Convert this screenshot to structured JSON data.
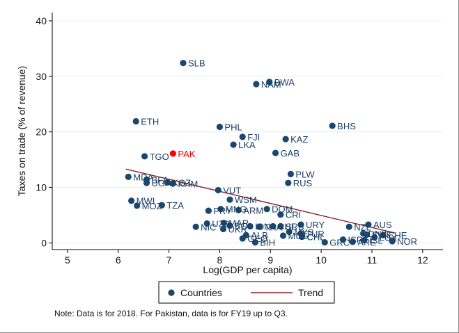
{
  "chart_data": {
    "type": "scatter",
    "xlabel": "Log(GDP per capita)",
    "ylabel": "Taxes on trade (% of revenue)",
    "xlim": [
      4.7,
      12.4
    ],
    "ylim": [
      -1.2,
      41.5
    ],
    "xticks": [
      5,
      6,
      7,
      8,
      9,
      10,
      11,
      12
    ],
    "yticks": [
      0,
      10,
      20,
      30,
      40
    ],
    "grid": "horizontal",
    "legend_position": "bottom",
    "colors": {
      "points": "#1a476f",
      "highlight": "#ff0000",
      "trend": "#8b2027",
      "grid": "#e8eef2"
    },
    "legend": {
      "points_label": "Countries",
      "trend_label": "Trend"
    },
    "trend": {
      "x": [
        6.15,
        11.45
      ],
      "y": [
        13.3,
        1.8
      ]
    },
    "series": [
      {
        "points": [
          {
            "x": 7.28,
            "y": 32.4,
            "label": "SLB"
          },
          {
            "x": 8.98,
            "y": 29.0,
            "label": "BWA"
          },
          {
            "x": 8.72,
            "y": 28.6,
            "label": "NAM"
          },
          {
            "x": 6.35,
            "y": 21.9,
            "label": "ETH"
          },
          {
            "x": 8.0,
            "y": 20.9,
            "label": "PHL"
          },
          {
            "x": 10.22,
            "y": 21.1,
            "label": "BHS"
          },
          {
            "x": 8.45,
            "y": 19.1,
            "label": "FJI"
          },
          {
            "x": 9.3,
            "y": 18.7,
            "label": "KAZ"
          },
          {
            "x": 8.27,
            "y": 17.7,
            "label": "LKA"
          },
          {
            "x": 9.1,
            "y": 16.2,
            "label": "GAB"
          },
          {
            "x": 6.52,
            "y": 15.6,
            "label": "TGO"
          },
          {
            "x": 9.4,
            "y": 12.4,
            "label": "PLW"
          },
          {
            "x": 9.35,
            "y": 10.8,
            "label": "RUS"
          },
          {
            "x": 6.2,
            "y": 11.9,
            "label": "MDA"
          },
          {
            "x": 6.56,
            "y": 11.4,
            "label": "BFA"
          },
          {
            "x": 6.56,
            "y": 10.8,
            "label": "UGA"
          },
          {
            "x": 6.97,
            "y": 10.9,
            "label": "KGZ"
          },
          {
            "x": 7.08,
            "y": 10.7,
            "label": "KHM"
          },
          {
            "x": 7.97,
            "y": 9.5,
            "label": "VUT"
          },
          {
            "x": 8.2,
            "y": 7.8,
            "label": "WSM"
          },
          {
            "x": 6.26,
            "y": 7.6,
            "label": "MWI"
          },
          {
            "x": 6.37,
            "y": 6.7,
            "label": "MOZ"
          },
          {
            "x": 6.86,
            "y": 6.8,
            "label": "TZA"
          },
          {
            "x": 8.02,
            "y": 6.1,
            "label": "MNG"
          },
          {
            "x": 7.78,
            "y": 5.8,
            "label": "PRY"
          },
          {
            "x": 8.37,
            "y": 5.9,
            "label": "ARM"
          },
          {
            "x": 8.93,
            "y": 6.1,
            "label": "DOM"
          },
          {
            "x": 9.2,
            "y": 5.1,
            "label": "CRI"
          },
          {
            "x": 7.75,
            "y": 3.5,
            "label": "UZB"
          },
          {
            "x": 8.08,
            "y": 3.6,
            "label": "MAR"
          },
          {
            "x": 7.53,
            "y": 2.9,
            "label": "NIC"
          },
          {
            "x": 8.07,
            "y": 2.5,
            "label": "UKR"
          },
          {
            "x": 8.2,
            "y": 3.1,
            "label": "BOL"
          },
          {
            "x": 8.6,
            "y": 3.0,
            "label": "IDN"
          },
          {
            "x": 8.78,
            "y": 2.9,
            "label": "THA"
          },
          {
            "x": 9.05,
            "y": 3.0,
            "label": "CHL"
          },
          {
            "x": 9.2,
            "y": 3.0,
            "label": "SRB"
          },
          {
            "x": 9.6,
            "y": 3.3,
            "label": "URY"
          },
          {
            "x": 9.37,
            "y": 2.0,
            "label": "MYS"
          },
          {
            "x": 9.6,
            "y": 1.7,
            "label": "TUR"
          },
          {
            "x": 9.25,
            "y": 1.3,
            "label": "MUS"
          },
          {
            "x": 9.62,
            "y": 1.1,
            "label": "CHL"
          },
          {
            "x": 8.52,
            "y": 1.4,
            "label": "ALB"
          },
          {
            "x": 8.45,
            "y": 0.8,
            "label": "GEO"
          },
          {
            "x": 8.7,
            "y": 0.1,
            "label": "BIH"
          },
          {
            "x": 10.07,
            "y": 0.1,
            "label": "GRC"
          },
          {
            "x": 10.55,
            "y": 2.9,
            "label": "NZL"
          },
          {
            "x": 10.93,
            "y": 3.3,
            "label": "AUS"
          },
          {
            "x": 10.43,
            "y": 0.6,
            "label": "ISR"
          },
          {
            "x": 10.62,
            "y": 0.2,
            "label": "ARE"
          },
          {
            "x": 10.83,
            "y": 1.7,
            "label": "DNK"
          },
          {
            "x": 10.9,
            "y": 1.5,
            "label": "SWE"
          },
          {
            "x": 10.85,
            "y": 0.5,
            "label": "ISL"
          },
          {
            "x": 11.05,
            "y": 1.0,
            "label": "LUX"
          },
          {
            "x": 11.22,
            "y": 1.4,
            "label": "CHE"
          },
          {
            "x": 11.4,
            "y": 0.3,
            "label": "NOR"
          },
          {
            "x": 7.08,
            "y": 16.1,
            "label": "PAK",
            "highlight": true
          }
        ]
      }
    ]
  },
  "note": "Note: Data is for 2018. For Pakistan, data is for FY19 up to Q3."
}
